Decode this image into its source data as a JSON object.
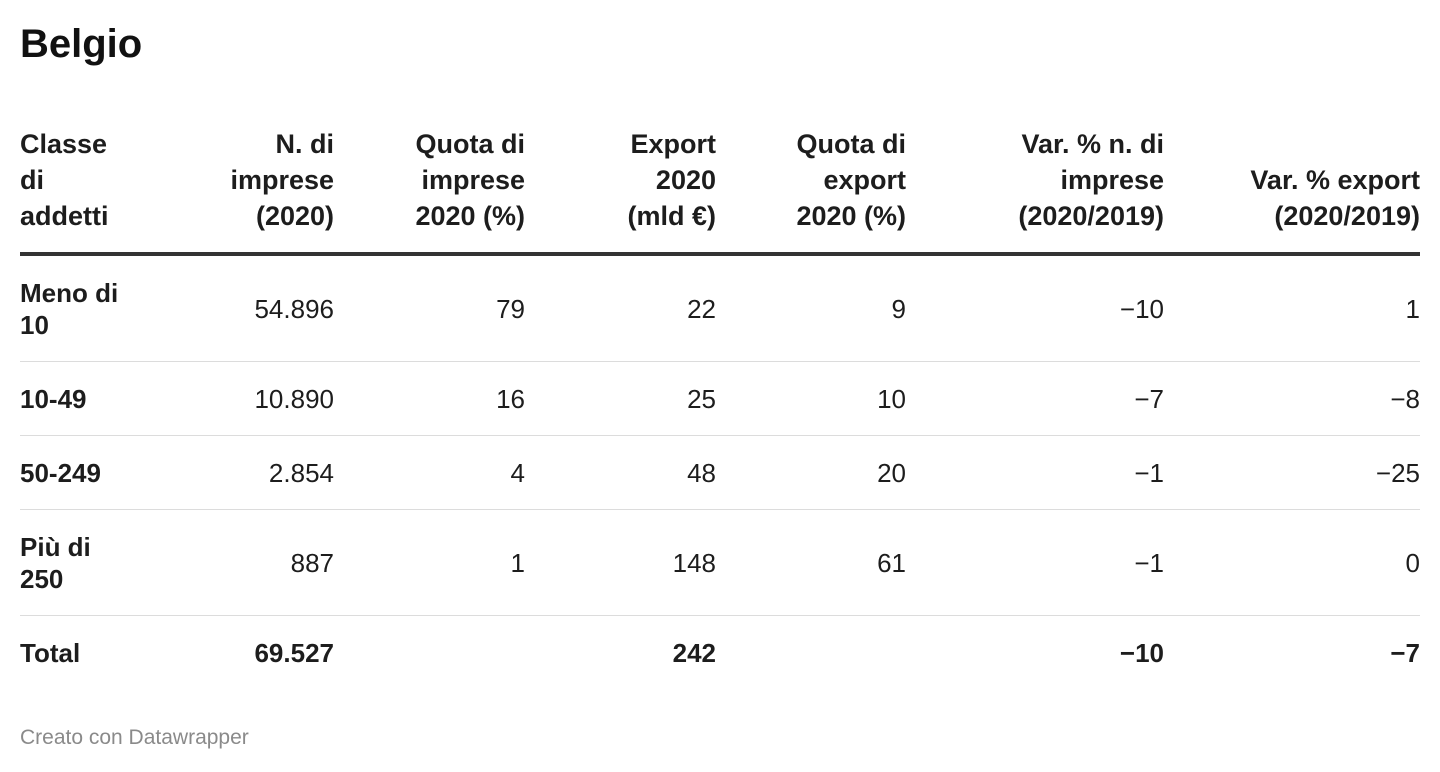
{
  "title": "Belgio",
  "credit": "Creato con Datawrapper",
  "chart_data": {
    "type": "table",
    "title": "Belgio",
    "columns": [
      "Classe di addetti",
      "N. di imprese (2020)",
      "Quota di imprese 2020 (%)",
      "Export 2020 (mld €)",
      "Quota di export 2020 (%)",
      "Var. % n. di imprese (2020/2019)",
      "Var. % export (2020/2019)"
    ],
    "rows": [
      [
        "Meno di 10",
        "54.896",
        "79",
        "22",
        "9",
        "−10",
        "1"
      ],
      [
        "10-49",
        "10.890",
        "16",
        "25",
        "10",
        "−7",
        "−8"
      ],
      [
        "50-249",
        "2.854",
        "4",
        "48",
        "20",
        "−1",
        "−25"
      ],
      [
        "Più di 250",
        "887",
        "1",
        "148",
        "61",
        "−1",
        "0"
      ],
      [
        "Total",
        "69.527",
        "",
        "242",
        "",
        "−10",
        "−7"
      ]
    ]
  }
}
